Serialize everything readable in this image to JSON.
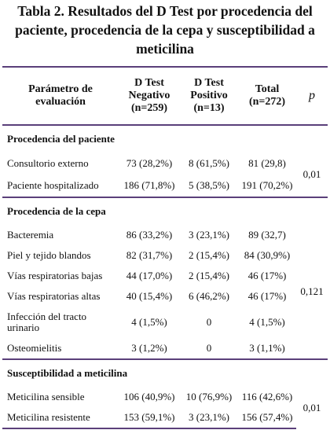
{
  "title": "Tabla 2. Resultados del D Test por procedencia del paciente, procedencia de la cepa y susceptibilidad a meticilina",
  "header": [
    "Parámetro de evaluación",
    "D Test Negativo (n=259)",
    "D Test Positivo (n=13)",
    "Total (n=272)",
    "p"
  ],
  "sections": [
    {
      "title": "Procedencia del paciente",
      "p": "0,01",
      "rows": [
        [
          "Consultorio externo",
          "73 (28,2%)",
          "8 (61,5%)",
          "81 (29,8)"
        ],
        [
          "Paciente hospitalizado",
          "186 (71,8%)",
          "5 (38,5%)",
          "191 (70,2%)"
        ]
      ]
    },
    {
      "title": "Procedencia de la cepa",
      "p": "0,121",
      "rows": [
        [
          "Bacteremia",
          "86 (33,2%)",
          "3 (23,1%)",
          "89 (32,7)"
        ],
        [
          "Piel y tejido blandos",
          "82 (31,7%)",
          "2 (15,4%)",
          "84 (30,9%)"
        ],
        [
          "Vías respiratorias bajas",
          "44 (17,0%)",
          "2 (15,4%)",
          "46 (17%)"
        ],
        [
          "Vías respiratorias altas",
          "40 (15,4%)",
          "6 (46,2%)",
          "46 (17%)"
        ],
        [
          "Infección del tracto urinario",
          "4 (1,5%)",
          "0",
          "4 (1,5%)"
        ],
        [
          "Osteomielitis",
          "3 (1,2%)",
          "0",
          "3 (1,1%)"
        ]
      ]
    },
    {
      "title": "Susceptibilidad a meticilina",
      "p": "0,01",
      "rows": [
        [
          "Meticilina sensible",
          "106 (40,9%)",
          "10 (76,9%)",
          "116 (42,6%)"
        ],
        [
          "Meticilina resistente",
          "153 (59,1%)",
          "3 (23,1%)",
          "156 (57,4%)"
        ]
      ]
    }
  ]
}
